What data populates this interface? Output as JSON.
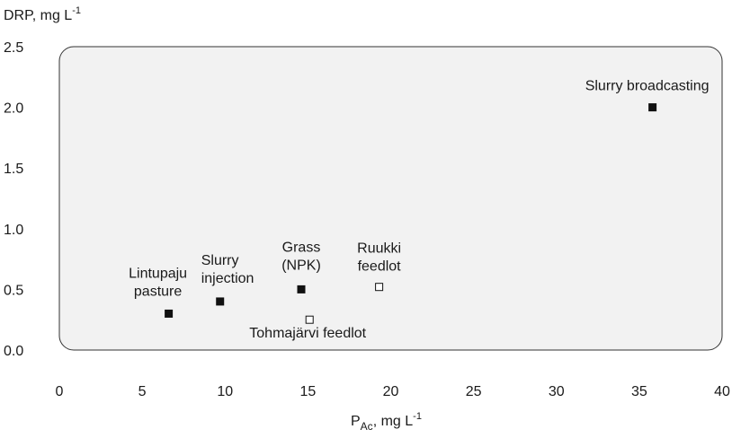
{
  "chart_data": {
    "type": "scatter",
    "y_label": {
      "text": "DRP, mg L",
      "sup": "-1"
    },
    "x_label": {
      "text": "P",
      "sub": "Ac",
      "rest": ", mg L",
      "sup": "-1"
    },
    "x": [
      6.6,
      9.7,
      14.6,
      15.1,
      19.3,
      35.8
    ],
    "y": [
      0.3,
      0.4,
      0.5,
      0.25,
      0.52,
      2.0
    ],
    "labels": [
      [
        "Lintupaju",
        "pasture"
      ],
      [
        "Slurry",
        "injection"
      ],
      [
        "Grass",
        "(NPK)"
      ],
      [
        "Tohmajärvi feedlot"
      ],
      [
        "Ruukki",
        "feedlot"
      ],
      [
        "Slurry broadcasting"
      ]
    ],
    "markers": [
      "filled",
      "filled",
      "filled",
      "open",
      "open",
      "filled"
    ],
    "color": "#111111",
    "xlim": [
      0,
      40
    ],
    "xticks": [
      0,
      5,
      10,
      15,
      20,
      25,
      30,
      35,
      40
    ],
    "ylim": [
      0,
      2.5
    ],
    "yticks": [
      {
        "value": 0,
        "label": "0.0"
      },
      0.5,
      {
        "value": 1,
        "label": "1.0"
      },
      1.5,
      {
        "value": 2,
        "label": "2.0"
      },
      2.5
    ]
  }
}
